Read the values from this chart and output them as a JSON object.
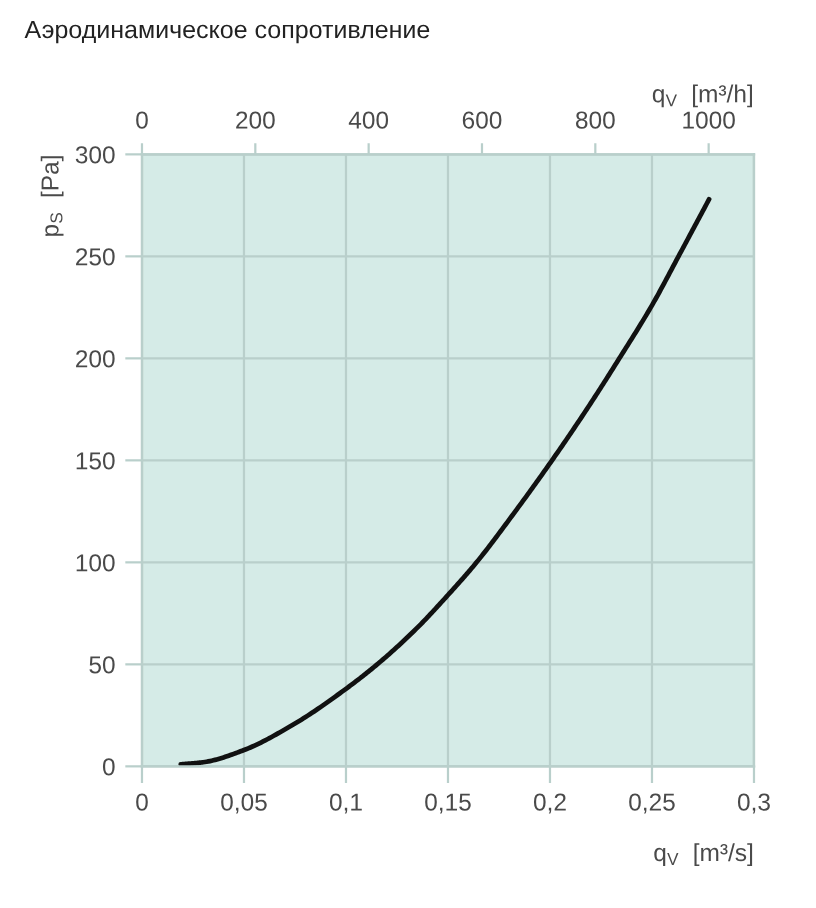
{
  "chart_data": {
    "type": "line",
    "title": "Аэродинамическое сопротивление",
    "xlabel": "q$_{V}$  [m³/s]",
    "x2label": "q$_{V}$  [m³/h]",
    "ylabel": "p$_{S}$  [Pa]",
    "x": [
      0.019,
      0.03,
      0.05,
      0.075,
      0.1,
      0.1165,
      0.135,
      0.15,
      0.164,
      0.183,
      0.201,
      0.218,
      0.234,
      0.25,
      0.263,
      0.278
    ],
    "series": [
      {
        "color": "#111111",
        "values": [
          1,
          2,
          8,
          21,
          38,
          51,
          68,
          84,
          100,
          125,
          150,
          175,
          200,
          226,
          250,
          278
        ]
      }
    ],
    "xlim": [
      0,
      0.3
    ],
    "xticks": [
      0,
      {
        "value": 0.05,
        "label": "0,05"
      },
      {
        "value": 0.1,
        "label": "0,1"
      },
      {
        "value": 0.15,
        "label": "0,15"
      },
      {
        "value": 0.2,
        "label": "0,2"
      },
      {
        "value": 0.25,
        "label": "0,25"
      },
      {
        "value": 0.3,
        "label": "0,3"
      }
    ],
    "x2lim": [
      0,
      1080
    ],
    "x2ticks": [
      0,
      200,
      400,
      600,
      800,
      1000
    ],
    "ylim": [
      0,
      300
    ],
    "yticks": [
      0,
      50,
      100,
      150,
      200,
      250,
      300
    ],
    "grid": true,
    "line_style": "solid"
  }
}
